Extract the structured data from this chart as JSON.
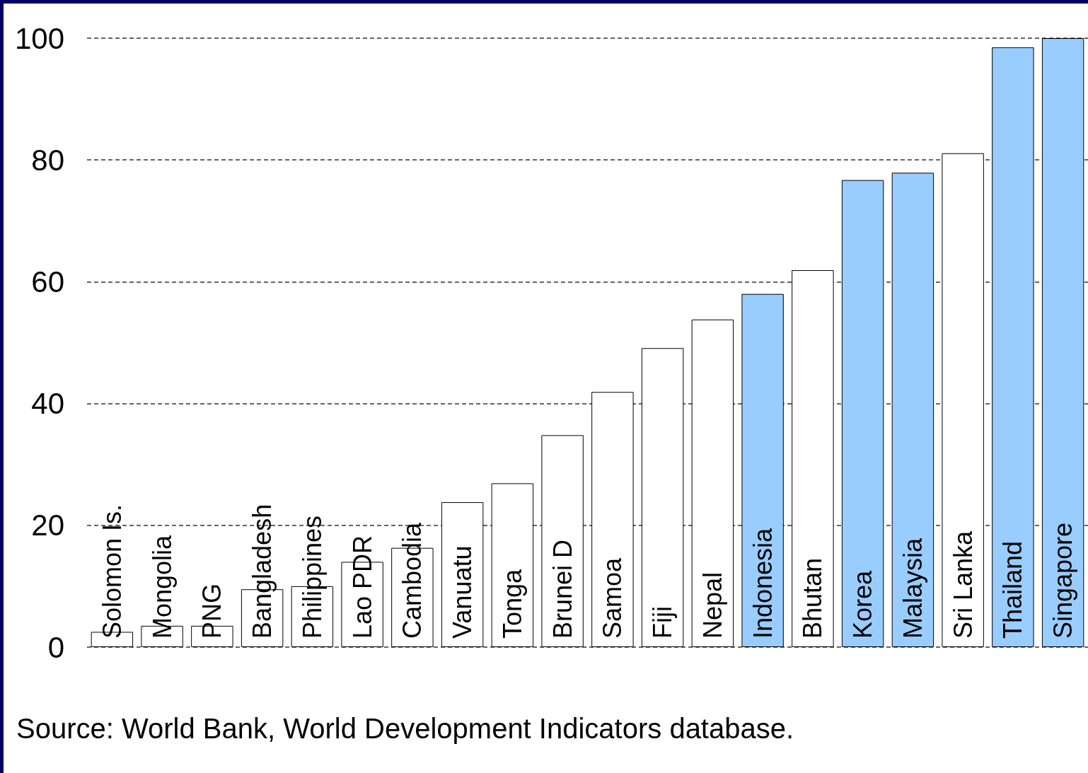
{
  "chart_data": {
    "type": "bar",
    "categories": [
      "Solomon Is.",
      "Mongolia",
      "PNG",
      "Bangladesh",
      "Philippines",
      "Lao PDR",
      "Cambodia",
      "Vanuatu",
      "Tonga",
      "Brunei D",
      "Samoa",
      "Fiji",
      "Nepal",
      "Indonesia",
      "Bhutan",
      "Korea",
      "Malaysia",
      "Sri Lanka",
      "Thailand",
      "Singapore"
    ],
    "values": [
      2.5,
      3.5,
      3.5,
      9.5,
      10,
      14,
      16.3,
      23.8,
      26.9,
      34.8,
      41.9,
      49.1,
      53.8,
      58,
      61.9,
      76.7,
      77.9,
      81.1,
      98.5,
      100
    ],
    "colors": [
      "#ffffff",
      "#ffffff",
      "#ffffff",
      "#ffffff",
      "#ffffff",
      "#ffffff",
      "#ffffff",
      "#ffffff",
      "#ffffff",
      "#ffffff",
      "#ffffff",
      "#ffffff",
      "#ffffff",
      "#99ccff",
      "#ffffff",
      "#99ccff",
      "#99ccff",
      "#ffffff",
      "#99ccff",
      "#99ccff"
    ],
    "ylim": [
      0,
      100
    ],
    "yticks": [
      0,
      20,
      40,
      60,
      80,
      100
    ],
    "grid": "y",
    "annotations": [
      "Source: World Bank, World Development Indicators database."
    ]
  }
}
